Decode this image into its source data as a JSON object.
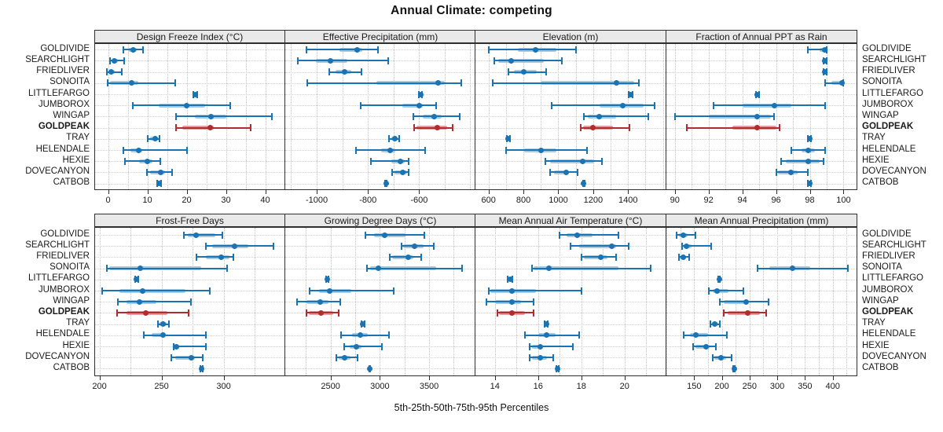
{
  "title": "Annual Climate: competing",
  "caption": "5th-25th-50th-75th-95th Percentiles",
  "stations": [
    "GOLDIVIDE",
    "SEARCHLIGHT",
    "FRIEDLIVER",
    "SONOITA",
    "LITTLEFARGO",
    "JUMBOROX",
    "WINGAP",
    "GOLDPEAK",
    "TRAY",
    "HELENDALE",
    "HEXIE",
    "DOVECANYON",
    "CATBOB"
  ],
  "highlight_station": "GOLDPEAK",
  "percentiles": [
    5,
    25,
    50,
    75,
    95
  ],
  "colors": {
    "series": "#1a73b3",
    "series_band": "#a5cbe3",
    "highlight": "#b02c2e",
    "highlight_band": "#df9e9e",
    "grid": "#c3c3c3",
    "strip_bg": "#e9e9e9",
    "border": "#2f2f2f"
  },
  "chart_data": [
    {
      "type": "scatter",
      "style": "dot-whisker-percentiles",
      "title": "Design Freeze Index (°C)",
      "xlim": [
        -3.3,
        44.9
      ],
      "grid_step": 5,
      "ticks": [
        0,
        10,
        20,
        30,
        40
      ],
      "values": {
        "GOLDIVIDE": [
          3.9,
          5.0,
          6.4,
          7.3,
          8.9
        ],
        "SEARCHLIGHT": [
          0.4,
          0.9,
          1.6,
          2.4,
          4.0
        ],
        "FRIEDLIVER": [
          -0.3,
          0.2,
          0.8,
          1.6,
          3.4
        ],
        "SONOITA": [
          -0.1,
          0.4,
          6.0,
          7.7,
          17.1
        ],
        "LITTLEFARGO": [
          21.6,
          21.9,
          22.1,
          22.3,
          22.6
        ],
        "JUMBOROX": [
          6.2,
          12.9,
          19.9,
          24.6,
          31.0
        ],
        "WINGAP": [
          17.2,
          22.0,
          26.1,
          30.1,
          41.6
        ],
        "GOLDPEAK": [
          17.2,
          18.8,
          25.9,
          26.8,
          36.3
        ],
        "TRAY": [
          10.1,
          10.7,
          11.9,
          12.6,
          13.0
        ],
        "HELENDALE": [
          3.9,
          5.7,
          7.8,
          8.6,
          20.0
        ],
        "HEXIE": [
          4.3,
          7.8,
          9.9,
          11.2,
          13.2
        ],
        "DOVECANYON": [
          9.9,
          10.6,
          13.4,
          14.5,
          16.2
        ],
        "CATBOB": [
          12.5,
          12.8,
          13.0,
          13.2,
          13.5
        ]
      }
    },
    {
      "type": "scatter",
      "style": "dot-whisker-percentiles",
      "title": "Effective Precipitation (mm)",
      "xlim": [
        -1123,
        -380
      ],
      "grid_step": 100,
      "ticks": [
        -1000,
        -800,
        -600
      ],
      "values": {
        "GOLDIVIDE": [
          -1040,
          -910,
          -843,
          -822,
          -762
        ],
        "SEARCHLIGHT": [
          -1075,
          -1004,
          -947,
          -880,
          -722
        ],
        "FRIEDLIVER": [
          -952,
          -927,
          -892,
          -864,
          -824
        ],
        "SONOITA": [
          -1037,
          -767,
          -525,
          -500,
          -435
        ],
        "LITTLEFARGO": [
          -600,
          -597,
          -594,
          -591,
          -588
        ],
        "JUMBOROX": [
          -827,
          -664,
          -599,
          -587,
          -532
        ],
        "WINGAP": [
          -622,
          -587,
          -540,
          -512,
          -442
        ],
        "GOLDPEAK": [
          -620,
          -610,
          -530,
          -490,
          -468
        ],
        "TRAY": [
          -717,
          -707,
          -694,
          -685,
          -677
        ],
        "HELENDALE": [
          -847,
          -747,
          -714,
          -692,
          -577
        ],
        "HEXIE": [
          -787,
          -707,
          -672,
          -657,
          -642
        ],
        "DOVECANYON": [
          -706,
          -695,
          -665,
          -648,
          -640
        ],
        "CATBOB": [
          -732,
          -730,
          -729,
          -728,
          -726
        ]
      }
    },
    {
      "type": "scatter",
      "style": "dot-whisker-percentiles",
      "title": "Elevation (m)",
      "xlim": [
        525,
        1615
      ],
      "grid_step": 100,
      "ticks": [
        600,
        800,
        1000,
        1200,
        1400
      ],
      "values": {
        "GOLDIVIDE": [
          600,
          770,
          870,
          990,
          1100
        ],
        "SEARCHLIGHT": [
          635,
          655,
          730,
          915,
          1020
        ],
        "FRIEDLIVER": [
          715,
          745,
          800,
          875,
          930
        ],
        "SONOITA": [
          625,
          900,
          1335,
          1435,
          1460
        ],
        "LITTLEFARGO": [
          1405,
          1410,
          1415,
          1420,
          1425
        ],
        "JUMBOROX": [
          960,
          1235,
          1370,
          1490,
          1550
        ],
        "WINGAP": [
          1145,
          1170,
          1235,
          1330,
          1515
        ],
        "GOLDPEAK": [
          1130,
          1140,
          1200,
          1315,
          1410
        ],
        "TRAY": [
          705,
          708,
          713,
          718,
          723
        ],
        "HELENDALE": [
          700,
          805,
          900,
          990,
          1165
        ],
        "HEXIE": [
          925,
          955,
          1140,
          1205,
          1250
        ],
        "DOVECANYON": [
          955,
          975,
          1045,
          1060,
          1110
        ],
        "CATBOB": [
          1140,
          1142,
          1145,
          1148,
          1150
        ]
      }
    },
    {
      "type": "scatter",
      "style": "dot-whisker-percentiles",
      "title": "Fraction of Annual PPT as Rain",
      "xlim": [
        89.5,
        100.77
      ],
      "grid_step": 1,
      "ticks": [
        90,
        92,
        94,
        96,
        98,
        100
      ],
      "values": {
        "GOLDIVIDE": [
          97.9,
          98.6,
          98.9,
          98.9,
          99.0
        ],
        "SEARCHLIGHT": [
          98.8,
          98.85,
          98.9,
          98.95,
          99.0
        ],
        "FRIEDLIVER": [
          98.8,
          98.85,
          98.9,
          98.95,
          99.0
        ],
        "SONOITA": [
          98.9,
          99.3,
          99.9,
          100.0,
          100.0
        ],
        "LITTLEFARGO": [
          94.8,
          94.85,
          94.9,
          94.95,
          95.0
        ],
        "JUMBOROX": [
          92.3,
          94.0,
          95.9,
          96.9,
          98.9
        ],
        "WINGAP": [
          90.0,
          92.0,
          94.9,
          95.7,
          95.9
        ],
        "GOLDPEAK": [
          90.7,
          93.4,
          94.9,
          96.0,
          96.2
        ],
        "TRAY": [
          97.9,
          97.95,
          98.0,
          98.0,
          98.05
        ],
        "HELENDALE": [
          96.9,
          97.5,
          97.9,
          98.3,
          98.9
        ],
        "HEXIE": [
          96.3,
          96.6,
          97.9,
          98.6,
          98.8
        ],
        "DOVECANYON": [
          96.0,
          96.1,
          96.9,
          97.3,
          97.9
        ],
        "CATBOB": [
          97.9,
          97.95,
          98.0,
          98.0,
          98.05
        ]
      }
    },
    {
      "type": "scatter",
      "style": "dot-whisker-percentiles",
      "title": "Frost-Free Days",
      "xlim": [
        196.5,
        349
      ],
      "grid_step": 25,
      "ticks": [
        200,
        250,
        300
      ],
      "values": {
        "GOLDIVIDE": [
          268,
          271,
          278,
          293,
          299
        ],
        "SEARCHLIGHT": [
          286,
          291,
          309,
          320,
          340
        ],
        "FRIEDLIVER": [
          278,
          286,
          298,
          305,
          308
        ],
        "SONOITA": [
          206,
          208,
          233,
          282,
          303
        ],
        "LITTLEFARGO": [
          229,
          229.5,
          230,
          230.5,
          231
        ],
        "JUMBOROX": [
          202,
          216,
          235,
          269,
          289
        ],
        "WINGAP": [
          215,
          222,
          232,
          246,
          274
        ],
        "GOLDPEAK": [
          214,
          222,
          237,
          255,
          272
        ],
        "TRAY": [
          247,
          248,
          251,
          254,
          256
        ],
        "HELENDALE": [
          236,
          242,
          251,
          253,
          286
        ],
        "HEXIE": [
          260,
          261,
          262,
          264,
          286
        ],
        "DOVECANYON": [
          258,
          261,
          274,
          277,
          283
        ],
        "CATBOB": [
          281,
          281.5,
          282,
          282.5,
          283
        ]
      }
    },
    {
      "type": "scatter",
      "style": "dot-whisker-percentiles",
      "title": "Growing Degree Days (°C)",
      "xlim": [
        2040,
        3970
      ],
      "grid_step": 250,
      "ticks": [
        2500,
        3000,
        3500
      ],
      "values": {
        "GOLDIVIDE": [
          2855,
          2940,
          3050,
          3260,
          3450
        ],
        "SEARCHLIGHT": [
          3220,
          3240,
          3355,
          3445,
          3545
        ],
        "FRIEDLIVER": [
          3100,
          3125,
          3290,
          3340,
          3420
        ],
        "SONOITA": [
          2870,
          2900,
          2985,
          3575,
          3835
        ],
        "LITTLEFARGO": [
          2455,
          2460,
          2465,
          2470,
          2475
        ],
        "JUMBOROX": [
          2290,
          2385,
          2490,
          2710,
          3140
        ],
        "WINGAP": [
          2160,
          2255,
          2395,
          2475,
          2600
        ],
        "GOLDPEAK": [
          2255,
          2280,
          2400,
          2530,
          2580
        ],
        "TRAY": [
          2810,
          2815,
          2823,
          2835,
          2845
        ],
        "HELENDALE": [
          2605,
          2720,
          2800,
          2875,
          3090
        ],
        "HEXIE": [
          2640,
          2695,
          2765,
          2810,
          3020
        ],
        "DOVECANYON": [
          2560,
          2580,
          2640,
          2705,
          2770
        ],
        "CATBOB": [
          2890,
          2893,
          2896,
          2899,
          2902
        ]
      }
    },
    {
      "type": "scatter",
      "style": "dot-whisker-percentiles",
      "title": "Mean Annual Air Temperature (°C)",
      "xlim": [
        13.1,
        21.9
      ],
      "grid_step": 1,
      "ticks": [
        14,
        16,
        18,
        20
      ],
      "values": {
        "GOLDIVIDE": [
          17.0,
          17.3,
          17.8,
          18.5,
          19.7
        ],
        "SEARCHLIGHT": [
          17.5,
          17.9,
          19.4,
          19.6,
          20.2
        ],
        "FRIEDLIVER": [
          18.0,
          18.1,
          18.9,
          19.2,
          19.6
        ],
        "SONOITA": [
          15.7,
          15.8,
          16.5,
          19.7,
          21.2
        ],
        "LITTLEFARGO": [
          14.6,
          14.65,
          14.7,
          14.75,
          14.8
        ],
        "JUMBOROX": [
          13.7,
          13.8,
          14.8,
          15.9,
          18.0
        ],
        "WINGAP": [
          13.6,
          14.0,
          14.8,
          15.2,
          15.8
        ],
        "GOLDPEAK": [
          14.1,
          14.2,
          14.8,
          15.4,
          15.8
        ],
        "TRAY": [
          16.3,
          16.35,
          16.4,
          16.42,
          16.45
        ],
        "HELENDALE": [
          15.4,
          16.0,
          16.4,
          16.8,
          17.9
        ],
        "HEXIE": [
          15.6,
          15.7,
          16.1,
          16.2,
          17.6
        ],
        "DOVECANYON": [
          15.6,
          15.7,
          16.1,
          16.4,
          16.7
        ],
        "CATBOB": [
          16.85,
          16.88,
          16.9,
          16.93,
          16.96
        ]
      }
    },
    {
      "type": "scatter",
      "style": "dot-whisker-percentiles",
      "title": "Mean Annual Precipitation (mm)",
      "xlim": [
        100,
        443
      ],
      "grid_step": 25,
      "ticks": [
        150,
        200,
        250,
        300,
        350,
        400
      ],
      "values": {
        "GOLDIVIDE": [
          119,
          123,
          131,
          138,
          153
        ],
        "SEARCHLIGHT": [
          129,
          131,
          136,
          146,
          181
        ],
        "FRIEDLIVER": [
          122,
          124,
          130,
          136,
          141
        ],
        "SONOITA": [
          265,
          285,
          328,
          360,
          428
        ],
        "LITTLEFARGO": [
          193,
          194,
          195,
          196,
          197
        ],
        "JUMBOROX": [
          176,
          184,
          191,
          212,
          239
        ],
        "WINGAP": [
          196,
          204,
          244,
          248,
          284
        ],
        "GOLDPEAK": [
          204,
          210,
          247,
          269,
          280
        ],
        "TRAY": [
          179,
          182,
          187,
          193,
          197
        ],
        "HELENDALE": [
          131,
          142,
          153,
          175,
          209
        ],
        "HEXIE": [
          148,
          152,
          171,
          178,
          190
        ],
        "DOVECANYON": [
          183,
          187,
          198,
          208,
          218
        ],
        "CATBOB": [
          220,
          221,
          222,
          223,
          224
        ]
      }
    }
  ]
}
